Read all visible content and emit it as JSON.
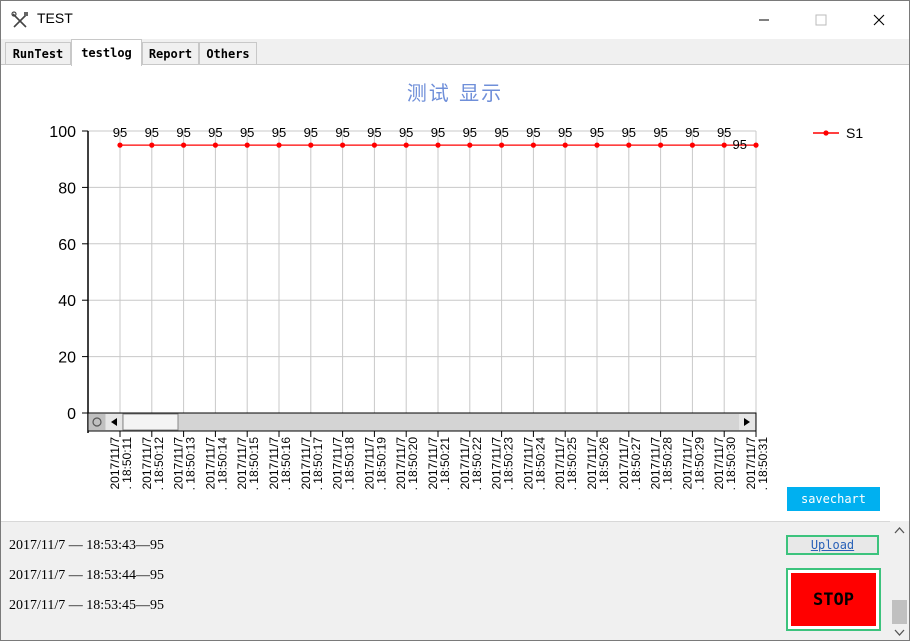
{
  "window": {
    "title": "TEST",
    "app_icon": "tools-icon",
    "controls": [
      "minimize-icon",
      "maximize-icon",
      "close-icon"
    ]
  },
  "tabs": [
    {
      "label": "RunTest",
      "active": false
    },
    {
      "label": "testlog",
      "active": true
    },
    {
      "label": "Report",
      "active": false
    },
    {
      "label": "Others",
      "active": false
    }
  ],
  "chart": {
    "title": "测试 显示",
    "series_color": "#ff0000"
  },
  "chart_data": {
    "type": "line",
    "title": "测试 显示",
    "xlabel": "",
    "ylabel": "",
    "ylim": [
      0,
      100
    ],
    "yticks": [
      0,
      20,
      40,
      60,
      80,
      100
    ],
    "grid": true,
    "legend": "top-right",
    "x": [
      "2017/11/7 18:50:11",
      "2017/11/7 18:50:12",
      "2017/11/7 18:50:13",
      "2017/11/7 18:50:14",
      "2017/11/7 18:50:15",
      "2017/11/7 18:50:16",
      "2017/11/7 18:50:17",
      "2017/11/7 18:50:18",
      "2017/11/7 18:50:19",
      "2017/11/7 18:50:20",
      "2017/11/7 18:50:21",
      "2017/11/7 18:50:22",
      "2017/11/7 18:50:23",
      "2017/11/7 18:50:24",
      "2017/11/7 18:50:25",
      "2017/11/7 18:50:26",
      "2017/11/7 18:50:27",
      "2017/11/7 18:50:28",
      "2017/11/7 18:50:29",
      "2017/11/7 18:50:30",
      "2017/11/7 18:50:31"
    ],
    "x_tick_labels": [
      [
        "2017/11/7",
        ". 18:50:11"
      ],
      [
        "2017/11/7",
        ". 18:50:12"
      ],
      [
        "2017/11/7",
        ". 18:50:13"
      ],
      [
        "2017/11/7",
        ". 18:50:14"
      ],
      [
        "2017/11/7",
        ". 18:50:15"
      ],
      [
        "2017/11/7",
        ". 18:50:16"
      ],
      [
        "2017/11/7",
        ". 18:50:17"
      ],
      [
        "2017/11/7",
        ". 18:50:18"
      ],
      [
        "2017/11/7",
        ". 18:50:19"
      ],
      [
        "2017/11/7",
        ". 18:50:20"
      ],
      [
        "2017/11/7",
        ". 18:50:21"
      ],
      [
        "2017/11/7",
        ". 18:50:22"
      ],
      [
        "2017/11/7",
        ". 18:50:23"
      ],
      [
        "2017/11/7",
        ". 18:50:24"
      ],
      [
        "2017/11/7",
        ". 18:50:25"
      ],
      [
        "2017/11/7",
        ". 18:50:26"
      ],
      [
        "2017/11/7",
        ". 18:50:27"
      ],
      [
        "2017/11/7",
        ". 18:50:28"
      ],
      [
        "2017/11/7",
        ". 18:50:29"
      ],
      [
        "2017/11/7",
        ". 18:50:30"
      ],
      [
        "2017/11/7",
        ". 18:50:31"
      ]
    ],
    "series": [
      {
        "name": "S1",
        "color": "#ff0000",
        "values": [
          95,
          95,
          95,
          95,
          95,
          95,
          95,
          95,
          95,
          95,
          95,
          95,
          95,
          95,
          95,
          95,
          95,
          95,
          95,
          95,
          95
        ]
      }
    ]
  },
  "buttons": {
    "savechart": "savechart",
    "upload": "Upload",
    "stop": "STOP"
  },
  "log": [
    "2017/11/7 — 18:53:43—95",
    "2017/11/7 — 18:53:44—95",
    "2017/11/7 — 18:53:45—95"
  ]
}
